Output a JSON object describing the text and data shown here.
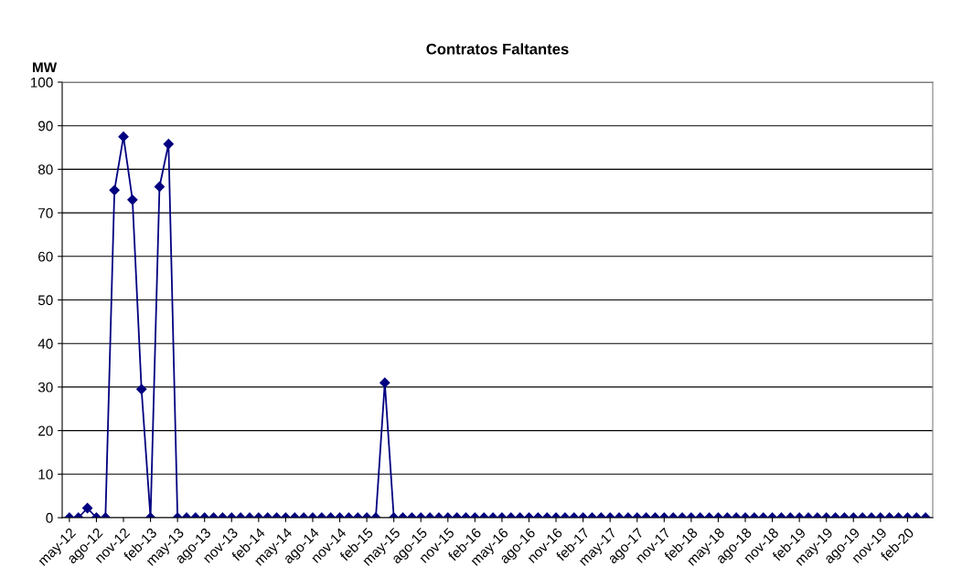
{
  "chart_data": {
    "type": "line",
    "title": "Contratos Faltantes",
    "ylabel": "MW",
    "categories": [
      "may-12",
      null,
      null,
      "ago-12",
      null,
      null,
      "nov-12",
      null,
      null,
      "feb-13",
      null,
      null,
      "may-13",
      null,
      null,
      "ago-13",
      null,
      null,
      "nov-13",
      null,
      null,
      "feb-14",
      null,
      null,
      "may-14",
      null,
      null,
      "ago-14",
      null,
      null,
      "nov-14",
      null,
      null,
      "feb-15",
      null,
      null,
      "may-15",
      null,
      null,
      "ago-15",
      null,
      null,
      "nov-15",
      null,
      null,
      "feb-16",
      null,
      null,
      "may-16",
      null,
      null,
      "ago-16",
      null,
      null,
      "nov-16",
      null,
      null,
      "feb-17",
      null,
      null,
      "may-17",
      null,
      null,
      "ago-17",
      null,
      null,
      "nov-17",
      null,
      null,
      "feb-18",
      null,
      null,
      "may-18",
      null,
      null,
      "ago-18",
      null,
      null,
      "nov-18",
      null,
      null,
      "feb-19",
      null,
      null,
      "may-19",
      null,
      null,
      "ago-19",
      null,
      null,
      "nov-19",
      null,
      null,
      "feb-20",
      null,
      null
    ],
    "series": [
      {
        "color": "#000080",
        "values": [
          0,
          0,
          2.2,
          0,
          0,
          75.2,
          87.5,
          73,
          29.5,
          0,
          76,
          85.8,
          0,
          0,
          0,
          0,
          0,
          0,
          0,
          0,
          0,
          0,
          0,
          0,
          0,
          0,
          0,
          0,
          0,
          0,
          0,
          0,
          0,
          0,
          0,
          31,
          0,
          0,
          0,
          0,
          0,
          0,
          0,
          0,
          0,
          0,
          0,
          0,
          0,
          0,
          0,
          0,
          0,
          0,
          0,
          0,
          0,
          0,
          0,
          0,
          0,
          0,
          0,
          0,
          0,
          0,
          0,
          0,
          0,
          0,
          0,
          0,
          0,
          0,
          0,
          0,
          0,
          0,
          0,
          0,
          0,
          0,
          0,
          0,
          0,
          0,
          0,
          0,
          0,
          0,
          0,
          0,
          0,
          0,
          0,
          0
        ]
      }
    ],
    "ylim": [
      0,
      100
    ],
    "yticks": [
      0,
      10,
      20,
      30,
      40,
      50,
      60,
      70,
      80,
      90,
      100
    ],
    "grid": "y",
    "marker": "diamond",
    "line_style": "solid",
    "legend": false
  }
}
